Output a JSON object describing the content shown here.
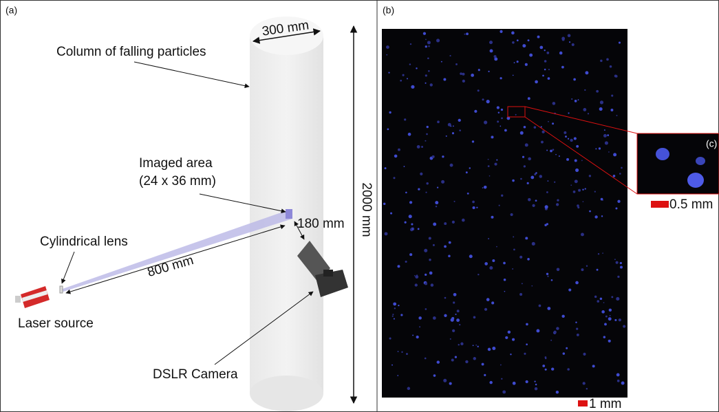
{
  "panel_a": {
    "label": "(a)",
    "column_width": "300 mm",
    "column_label": "Column of falling particles",
    "imaged_area": "Imaged area",
    "imaged_size": "(24 x 36 mm)",
    "camera_distance": "180 mm",
    "laser_distance": "800 mm",
    "lens": "Cylindrical lens",
    "laser": "Laser source",
    "camera": "DSLR Camera",
    "column_height": "2000 mm"
  },
  "panel_b": {
    "label": "(b)",
    "scale_bar": "1 mm"
  },
  "panel_c": {
    "label": "(c)",
    "scale_bar": "0.5 mm"
  }
}
